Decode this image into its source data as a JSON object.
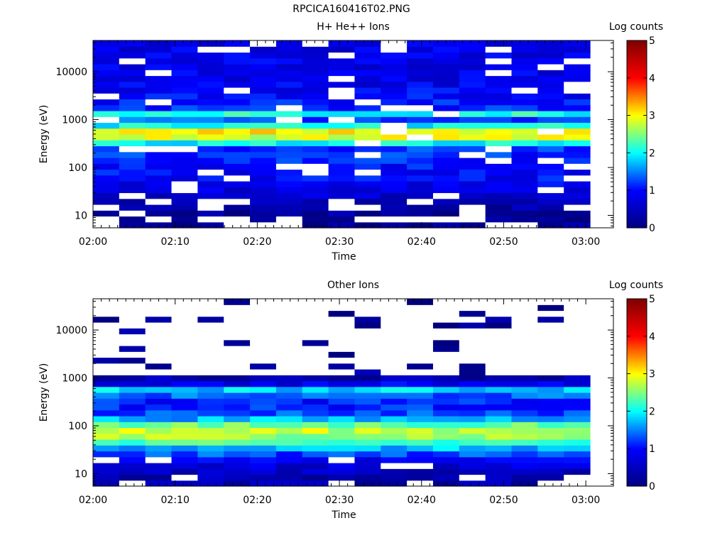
{
  "page": {
    "title": "RPCICA160416T02.PNG"
  },
  "colorscale": {
    "stops": [
      "#00007f",
      "#0000ff",
      "#00ffff",
      "#ffff00",
      "#ff0000",
      "#7f0000"
    ],
    "empty_color": "#ffffff"
  },
  "chart_data": [
    {
      "type": "heatmap",
      "title": "H+ He++ Ions",
      "xlabel": "Time",
      "ylabel": "Energy (eV)",
      "xticks": [
        "02:00",
        "02:10",
        "02:20",
        "02:30",
        "02:40",
        "02:50",
        "03:00"
      ],
      "yticks": [
        "10",
        "100",
        "1000",
        "10000"
      ],
      "yscale": "log",
      "ylim": [
        5.5,
        45000
      ],
      "colorbar": {
        "label": "Log counts",
        "ticks": [
          "0",
          "1",
          "2",
          "3",
          "4",
          "5"
        ],
        "range": [
          0,
          5
        ]
      },
      "time_bins": 19,
      "energy_bins": 32,
      "profile": [
        {
          "e": 10,
          "v": 0.15
        },
        {
          "e": 18,
          "v": 0.4
        },
        {
          "e": 30,
          "v": 0.7
        },
        {
          "e": 60,
          "v": 0.95
        },
        {
          "e": 120,
          "v": 1.05
        },
        {
          "e": 250,
          "v": 1.2
        },
        {
          "e": 400,
          "v": 2.6
        },
        {
          "e": 520,
          "v": 3.4
        },
        {
          "e": 700,
          "v": 2.2
        },
        {
          "e": 1000,
          "v": 1.3
        },
        {
          "e": 1300,
          "v": 2.2
        },
        {
          "e": 1800,
          "v": 1.1
        },
        {
          "e": 5000,
          "v": 0.85
        },
        {
          "e": 40000,
          "v": 0.8
        }
      ],
      "gap_probability": 0.09
    },
    {
      "type": "heatmap",
      "title": "Other Ions",
      "xlabel": "Time",
      "ylabel": "Energy (eV)",
      "xticks": [
        "02:00",
        "02:10",
        "02:20",
        "02:30",
        "02:40",
        "02:50",
        "03:00"
      ],
      "yticks": [
        "10",
        "100",
        "1000",
        "10000"
      ],
      "yscale": "log",
      "ylim": [
        5.5,
        45000
      ],
      "colorbar": {
        "label": "Log counts",
        "ticks": [
          "0",
          "1",
          "2",
          "3",
          "4",
          "5"
        ],
        "range": [
          0,
          5
        ]
      },
      "time_bins": 19,
      "energy_bins": 32,
      "profile": [
        {
          "e": 10,
          "v": 0.4
        },
        {
          "e": 20,
          "v": 0.9
        },
        {
          "e": 30,
          "v": 1.5
        },
        {
          "e": 45,
          "v": 2.2
        },
        {
          "e": 70,
          "v": 2.9
        },
        {
          "e": 100,
          "v": 2.5
        },
        {
          "e": 160,
          "v": 1.4
        },
        {
          "e": 300,
          "v": 1.0
        },
        {
          "e": 450,
          "v": 1.4
        },
        {
          "e": 600,
          "v": 1.9
        },
        {
          "e": 800,
          "v": 0.6
        },
        {
          "e": 1200,
          "v": 0.2
        },
        {
          "e": 40000,
          "v": 0.1
        }
      ],
      "gap_probability_low": 0.08,
      "sparse_above_eV": 1100,
      "sparse_probability": 0.13
    }
  ]
}
